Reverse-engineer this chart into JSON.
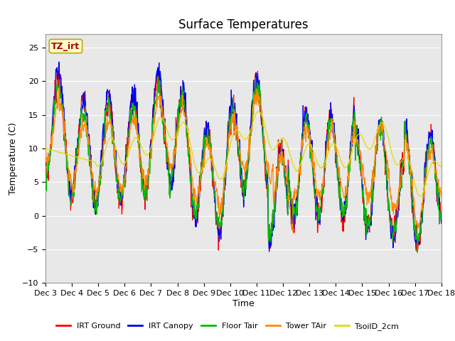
{
  "title": "Surface Temperatures",
  "xlabel": "Time",
  "ylabel": "Temperature (C)",
  "ylim": [
    -10,
    27
  ],
  "yticks": [
    -10,
    -5,
    0,
    5,
    10,
    15,
    20,
    25
  ],
  "xtick_labels": [
    "Dec 3",
    "Dec 4",
    "Dec 5",
    "Dec 6",
    "Dec 7",
    "Dec 8",
    "Dec 9",
    "Dec 10",
    "Dec 11",
    "Dec 12",
    "Dec 13",
    "Dec 14",
    "Dec 15",
    "Dec 16",
    "Dec 17",
    "Dec 18"
  ],
  "legend_entries": [
    "IRT Ground",
    "IRT Canopy",
    "Floor Tair",
    "Tower TAir",
    "TsoilD_2cm"
  ],
  "legend_colors": [
    "#ff0000",
    "#0000ee",
    "#00bb00",
    "#ff8800",
    "#dddd00"
  ],
  "annotation_text": "TZ_irt",
  "annotation_color": "#aa0000",
  "annotation_bg": "#ffffcc",
  "annotation_border": "#bbaa00",
  "plot_bg_color": "#e8e8e8",
  "grid_color": "#ffffff",
  "title_fontsize": 12,
  "axis_label_fontsize": 9,
  "tick_fontsize": 8
}
